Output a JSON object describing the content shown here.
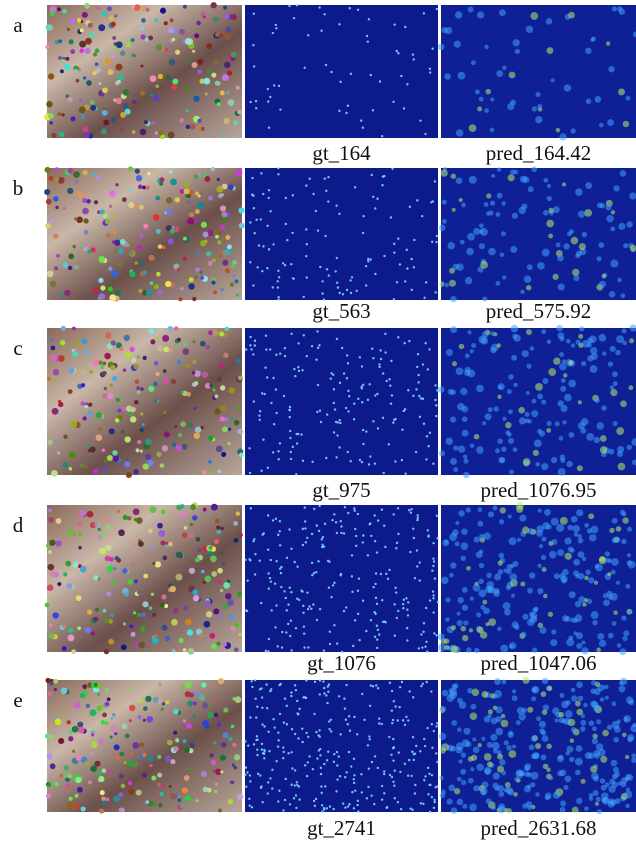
{
  "figure": {
    "rows": [
      {
        "label": "a",
        "gt": "gt_164",
        "pred": "pred_164.42"
      },
      {
        "label": "b",
        "gt": "gt_563",
        "pred": "pred_575.92"
      },
      {
        "label": "c",
        "gt": "gt_975",
        "pred": "pred_1076.95"
      },
      {
        "label": "d",
        "gt": "gt_1076",
        "pred": "pred_1047.06"
      },
      {
        "label": "e",
        "gt": "gt_2741",
        "pred": "pred_2631.68"
      }
    ]
  }
}
